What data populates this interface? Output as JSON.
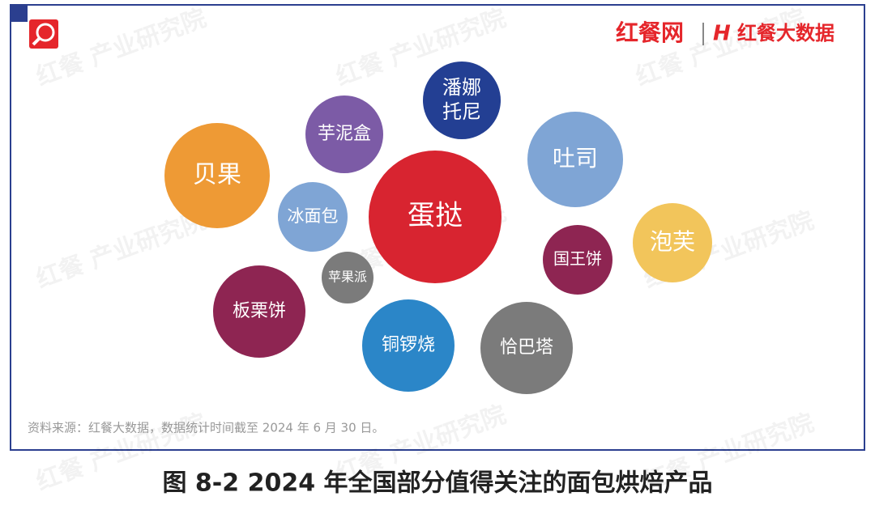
{
  "header": {
    "logo_left": "红餐网",
    "logo_right": "红餐大数据"
  },
  "watermark": "红餐 产业研究院",
  "nodes": [
    {
      "label": [
        "潘娜",
        "托尼"
      ],
      "color": "#233f93"
    },
    {
      "label": [
        "芋泥盒"
      ],
      "color": "#7c5ba6"
    },
    {
      "label": [
        "贝果"
      ],
      "color": "#ee9a35"
    },
    {
      "label": [
        "吐司"
      ],
      "color": "#7fa5d5"
    },
    {
      "label": [
        "蛋挞"
      ],
      "color": "#d82430"
    },
    {
      "label": [
        "冰面包"
      ],
      "color": "#7fa5d5"
    },
    {
      "label": [
        "泡芙"
      ],
      "color": "#f2c55b"
    },
    {
      "label": [
        "国王饼"
      ],
      "color": "#8e2552"
    },
    {
      "label": [
        "苹果派"
      ],
      "color": "#7b7b7b"
    },
    {
      "label": [
        "板栗饼"
      ],
      "color": "#8e2552"
    },
    {
      "label": [
        "铜锣烧"
      ],
      "color": "#2b86c8"
    },
    {
      "label": [
        "恰巴塔"
      ],
      "color": "#7b7b7b"
    }
  ],
  "source": "资料来源：红餐大数据，数据统计时间截至 2024 年 6 月 30 日。",
  "caption": "图 8-2     2024 年全国部分值得关注的面包烘焙产品"
}
